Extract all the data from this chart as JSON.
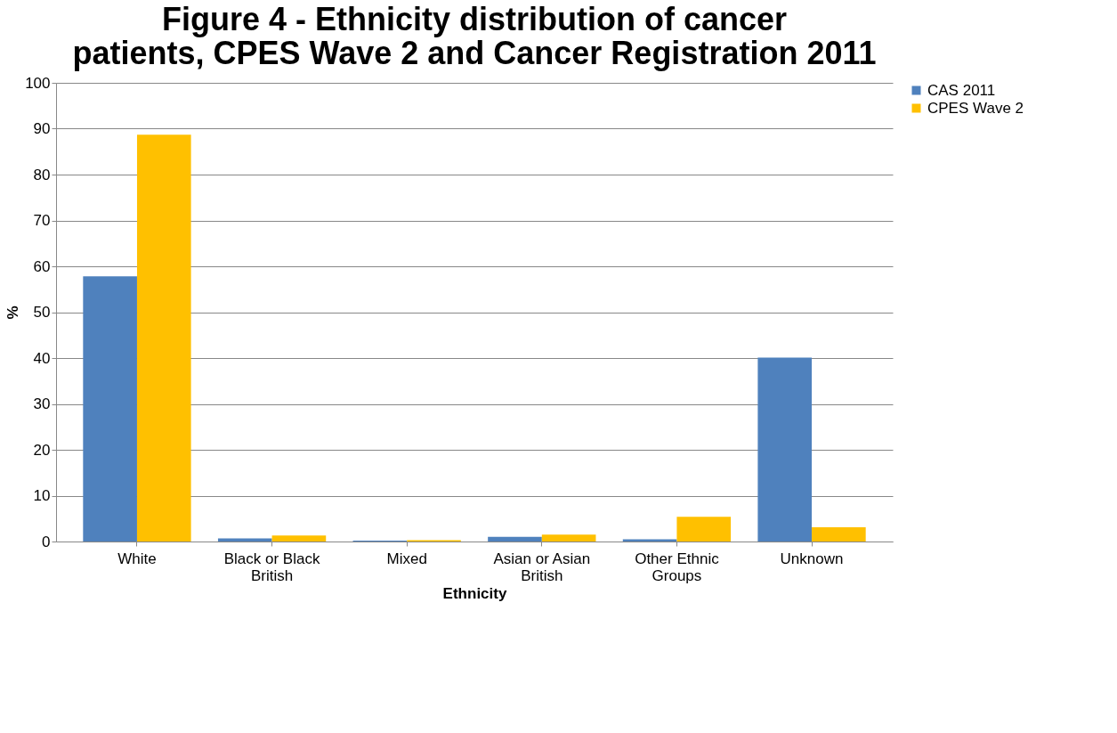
{
  "chart_data": {
    "type": "bar",
    "title": "Figure 4 - Ethnicity distribution of cancer patients, CPES Wave 2 and Cancer Registration 2011",
    "xlabel": "Ethnicity",
    "ylabel": "%",
    "categories": [
      "White",
      "Black or Black British",
      "Mixed",
      "Asian or Asian British",
      "Other Ethnic Groups",
      "Unknown"
    ],
    "series": [
      {
        "name": "CAS 2011",
        "color": "#4f81bd",
        "values": [
          57.8,
          0.7,
          0.2,
          1.0,
          0.5,
          40.1
        ]
      },
      {
        "name": "CPES Wave 2",
        "color": "#ffc000",
        "values": [
          88.7,
          1.3,
          0.3,
          1.5,
          5.4,
          3.1
        ]
      }
    ],
    "ylim": [
      0,
      100
    ],
    "yticks": [
      0,
      10,
      20,
      30,
      40,
      50,
      60,
      70,
      80,
      90,
      100
    ],
    "grid": "y",
    "legend": "right"
  }
}
